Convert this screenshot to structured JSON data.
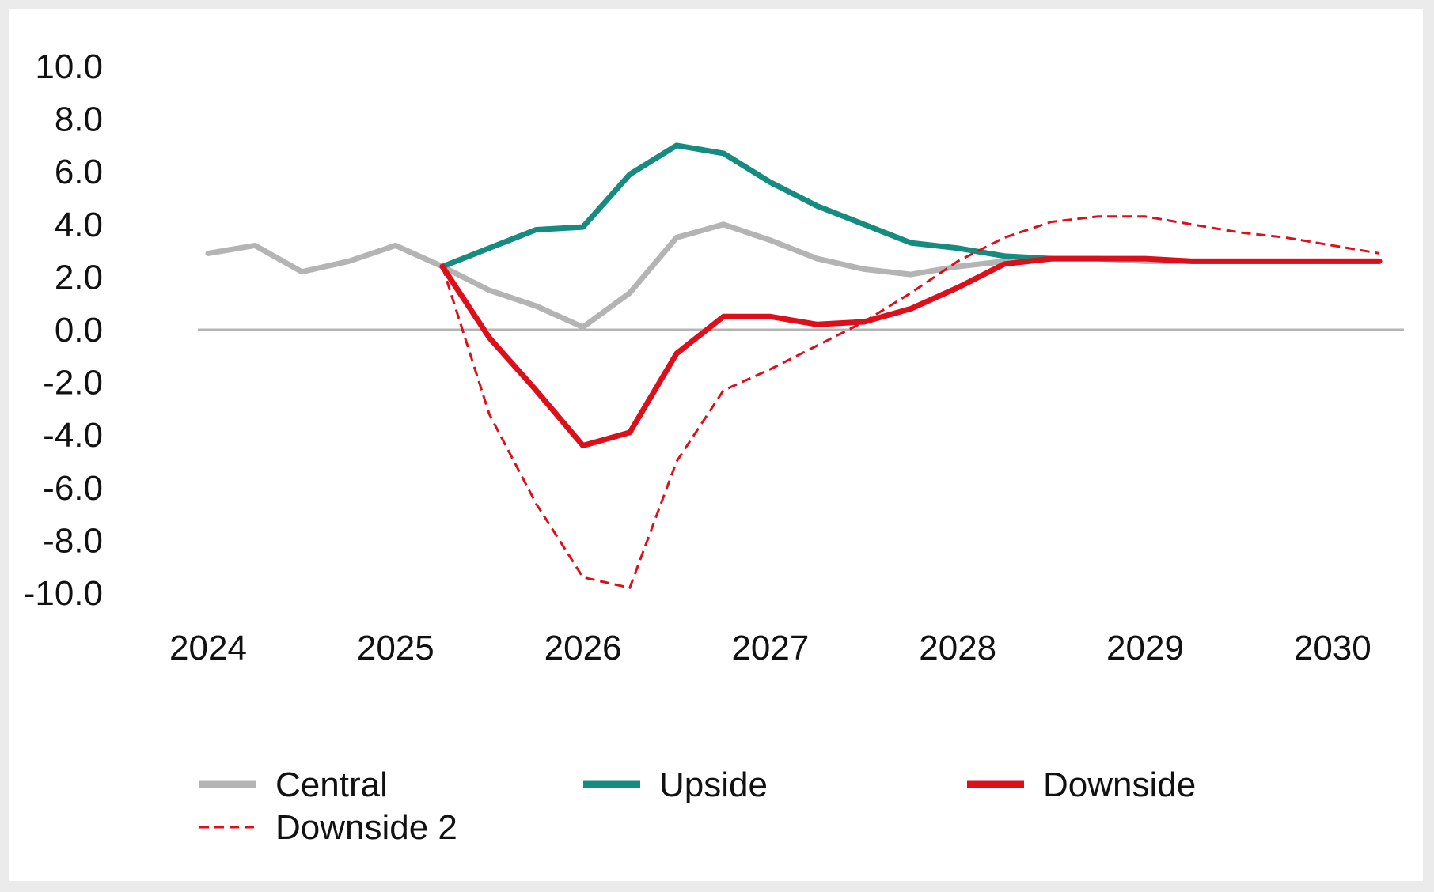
{
  "chart_data": {
    "type": "line",
    "title": "",
    "xlabel": "",
    "ylabel": "",
    "ylim": [
      -10,
      10
    ],
    "xlim": [
      2024,
      2030.25
    ],
    "y_ticks": [
      "10.0",
      "8.0",
      "6.0",
      "4.0",
      "2.0",
      "0.0",
      "-2.0",
      "-4.0",
      "-6.0",
      "-8.0",
      "-10.0"
    ],
    "x_ticks": [
      "2024",
      "2025",
      "2026",
      "2027",
      "2028",
      "2029",
      "2030"
    ],
    "grid": false,
    "zero_line": true,
    "legend_position": "bottom",
    "series": [
      {
        "name": "Central",
        "color": "#b4b4b4",
        "style": "solid",
        "x": [
          2024.0,
          2024.25,
          2024.5,
          2024.75,
          2025.0,
          2025.25,
          2025.5,
          2025.75,
          2026.0,
          2026.25,
          2026.5,
          2026.75,
          2027.0,
          2027.25,
          2027.5,
          2027.75,
          2028.0,
          2028.25,
          2028.5,
          2028.75,
          2029.0,
          2029.25,
          2029.5,
          2029.75,
          2030.0,
          2030.25
        ],
        "values": [
          2.9,
          3.2,
          2.2,
          2.6,
          3.2,
          2.4,
          1.5,
          0.9,
          0.1,
          1.4,
          3.5,
          4.0,
          3.4,
          2.7,
          2.3,
          2.1,
          2.4,
          2.6,
          2.7,
          2.7,
          2.6,
          2.6,
          2.6,
          2.6,
          2.6,
          2.6
        ]
      },
      {
        "name": "Upside",
        "color": "#168c80",
        "style": "solid",
        "x": [
          2025.25,
          2025.5,
          2025.75,
          2026.0,
          2026.25,
          2026.5,
          2026.75,
          2027.0,
          2027.25,
          2027.5,
          2027.75,
          2028.0,
          2028.25,
          2028.5
        ],
        "values": [
          2.4,
          3.1,
          3.8,
          3.9,
          5.9,
          7.0,
          6.7,
          5.6,
          4.7,
          4.0,
          3.3,
          3.1,
          2.8,
          2.7
        ]
      },
      {
        "name": "Downside",
        "color": "#dc0f1b",
        "style": "solid",
        "x": [
          2025.25,
          2025.5,
          2025.75,
          2026.0,
          2026.25,
          2026.5,
          2026.75,
          2027.0,
          2027.25,
          2027.5,
          2027.75,
          2028.0,
          2028.25,
          2028.5,
          2028.75,
          2029.0,
          2029.25,
          2029.5,
          2029.75,
          2030.0,
          2030.25
        ],
        "values": [
          2.4,
          -0.3,
          -2.3,
          -4.4,
          -3.9,
          -0.9,
          0.5,
          0.5,
          0.2,
          0.3,
          0.8,
          1.6,
          2.5,
          2.7,
          2.7,
          2.7,
          2.6,
          2.6,
          2.6,
          2.6,
          2.6
        ]
      },
      {
        "name": "Downside 2",
        "color": "#dc0f1b",
        "style": "dashed",
        "x": [
          2025.25,
          2025.5,
          2025.75,
          2026.0,
          2026.25,
          2026.5,
          2026.75,
          2027.0,
          2027.25,
          2027.5,
          2027.75,
          2028.0,
          2028.25,
          2028.5,
          2028.75,
          2029.0,
          2029.25,
          2029.5,
          2029.75,
          2030.0,
          2030.25
        ],
        "values": [
          2.4,
          -3.2,
          -6.6,
          -9.4,
          -9.8,
          -5.0,
          -2.3,
          -1.5,
          -0.6,
          0.3,
          1.4,
          2.6,
          3.5,
          4.1,
          4.3,
          4.3,
          4.0,
          3.7,
          3.5,
          3.2,
          2.9
        ]
      }
    ]
  }
}
